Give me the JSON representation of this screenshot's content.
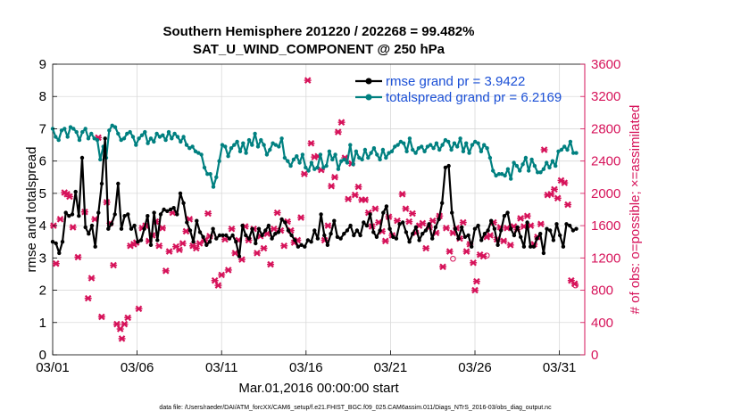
{
  "chart_data": {
    "type": "line",
    "title_line1": "Southern Hemisphere 201220 / 202268 = 99.482%",
    "title_line2": "SAT_U_WIND_COMPONENT @ 250 hPa",
    "xlabel": "Mar.01,2016 00:00:00 start",
    "ylabel_left": "rmse and totalspread",
    "ylabel_right": "# of obs: o=possible; ×=assimilated",
    "footnote": "data file: /Users/raeder/DAI/ATM_forcXX/CAM6_setup/f.e21.FHIST_BGC.f09_025.CAM6assim.011/Diags_NTrS_2016-03/obs_diag_output.nc",
    "xlim": [
      1,
      32.5
    ],
    "x_ticks": [
      1,
      6,
      11,
      16,
      21,
      26,
      31
    ],
    "x_tick_labels": [
      "03/01",
      "03/06",
      "03/11",
      "03/16",
      "03/21",
      "03/26",
      "03/31"
    ],
    "ylim_left": [
      0,
      9
    ],
    "y_ticks_left": [
      "0",
      "1",
      "2",
      "3",
      "4",
      "5",
      "6",
      "7",
      "8",
      "9"
    ],
    "ylim_right": [
      0,
      3600
    ],
    "y_ticks_right": [
      "0",
      "400",
      "800",
      "1200",
      "1600",
      "2000",
      "2400",
      "2800",
      "3200",
      "3600"
    ],
    "grid": true,
    "legend_position": "top-right",
    "colors": {
      "rmse": "#000000",
      "totalspread": "#008080",
      "obs": "#d6135a",
      "axis_left": "#000000",
      "axis_right": "#d6135a",
      "legend_text": "#1a4fd6",
      "grid": "#d9d9d9"
    },
    "series": [
      {
        "name": "rmse grand pr = 3.9422",
        "values": [
          3.5,
          3.45,
          3.15,
          3.5,
          4.4,
          4.3,
          4.35,
          5.05,
          4.3,
          6.1,
          3.95,
          3.75,
          4.0,
          3.35,
          4.4,
          5.3,
          6.7,
          3.9,
          4.05,
          4.35,
          5.3,
          3.9,
          4.3,
          4.35,
          3.9,
          4.0,
          3.5,
          3.55,
          3.9,
          4.3,
          3.4,
          4.4,
          3.55,
          4.35,
          4.5,
          4.45,
          4.5,
          4.55,
          4.35,
          5.0,
          4.7,
          4.1,
          3.85,
          3.5,
          4.15,
          3.8,
          3.65,
          3.4,
          3.5,
          3.9,
          3.6,
          3.7,
          3.7,
          3.7,
          3.6,
          3.7,
          3.5,
          3.05,
          4.0,
          3.7,
          3.6,
          3.9,
          3.45,
          3.9,
          3.7,
          3.85,
          4.0,
          3.6,
          3.75,
          3.8,
          4.2,
          4.1,
          3.85,
          3.7,
          3.55,
          3.35,
          3.4,
          3.35,
          3.55,
          3.5,
          3.85,
          3.6,
          4.35,
          3.7,
          3.4,
          3.75,
          4.15,
          3.65,
          3.6,
          3.75,
          3.85,
          4.0,
          3.7,
          3.85,
          3.7,
          4.1,
          4.0,
          4.35,
          3.8,
          3.65,
          3.85,
          4.4,
          4.6,
          3.9,
          3.65,
          3.6,
          4.05,
          4.1,
          3.8,
          3.5,
          3.75,
          3.95,
          3.55,
          3.75,
          3.85,
          4.05,
          3.6,
          3.95,
          4.2,
          4.7,
          5.8,
          5.85,
          4.4,
          3.9,
          3.6,
          3.95,
          3.65,
          3.7,
          3.35,
          3.9,
          4.0,
          3.55,
          3.75,
          3.85,
          4.15,
          3.9,
          3.4,
          3.85,
          4.3,
          4.4,
          3.9,
          3.7,
          3.95,
          3.65,
          3.35,
          4.1,
          3.35,
          3.35,
          3.6,
          3.75,
          3.15,
          3.9,
          3.85,
          3.55,
          4.05,
          3.7,
          3.35,
          4.05,
          4.0,
          3.85,
          3.9
        ]
      },
      {
        "name": "totalspread grand pr = 6.2169",
        "values": [
          7.0,
          6.75,
          6.65,
          6.95,
          7.0,
          6.75,
          7.05,
          7.0,
          6.9,
          6.65,
          6.9,
          7.0,
          6.7,
          6.85,
          6.7,
          6.65,
          6.05,
          6.45,
          6.1,
          6.95,
          7.1,
          7.05,
          6.85,
          6.65,
          6.7,
          6.85,
          6.9,
          6.75,
          6.5,
          6.7,
          6.8,
          6.9,
          6.55,
          6.7,
          6.6,
          6.85,
          6.75,
          6.8,
          6.65,
          6.9,
          6.7,
          6.85,
          6.75,
          6.6,
          6.75,
          6.5,
          6.4,
          6.45,
          6.3,
          6.25,
          6.2,
          5.8,
          5.6,
          5.6,
          5.2,
          5.5,
          6.0,
          6.5,
          6.45,
          6.15,
          6.4,
          6.5,
          6.6,
          6.3,
          6.55,
          6.25,
          6.65,
          6.5,
          6.85,
          6.45,
          6.65,
          6.5,
          6.2,
          6.35,
          6.55,
          6.5,
          6.45,
          6.7,
          6.1,
          6.0,
          5.85,
          6.05,
          6.15,
          5.95,
          6.2,
          5.8,
          5.7,
          5.95,
          5.75,
          5.8,
          6.2,
          5.8,
          5.85,
          6.3,
          6.05,
          6.2,
          5.75,
          6.0,
          6.05,
          5.95,
          6.5,
          5.9,
          6.3,
          6.1,
          6.05,
          6.35,
          6.1,
          6.25,
          6.4,
          6.2,
          6.05,
          6.35,
          6.1,
          6.25,
          6.3,
          6.45,
          6.5,
          6.6,
          6.55,
          6.3,
          6.7,
          6.35,
          6.25,
          6.4,
          6.45,
          6.3,
          6.45,
          6.5,
          6.4,
          6.55,
          6.35,
          6.5,
          6.65,
          6.6,
          6.35,
          6.55,
          6.45,
          6.7,
          6.3,
          6.55,
          6.25,
          6.5,
          6.6,
          6.55,
          6.3,
          6.5,
          6.4,
          6.1,
          5.7,
          5.55,
          5.6,
          5.6,
          5.55,
          5.75,
          5.45,
          5.95,
          5.85,
          5.7,
          5.9,
          6.1,
          5.7,
          6.05,
          5.85,
          5.65,
          5.65,
          5.75,
          5.95,
          5.8,
          6.0,
          5.85,
          6.3,
          6.35,
          6.45,
          6.35,
          6.6,
          6.25,
          6.25
        ]
      }
    ],
    "obs_points": [
      [
        1.05,
        1600
      ],
      [
        1.2,
        1130
      ],
      [
        1.45,
        1680
      ],
      [
        1.7,
        2010
      ],
      [
        1.85,
        1990
      ],
      [
        2.0,
        1960
      ],
      [
        2.2,
        1580
      ],
      [
        2.5,
        1210
      ],
      [
        2.9,
        1770
      ],
      [
        3.1,
        700
      ],
      [
        3.3,
        950
      ],
      [
        3.5,
        1680
      ],
      [
        3.7,
        2690
      ],
      [
        3.9,
        470
      ],
      [
        4.2,
        1890
      ],
      [
        4.4,
        1630
      ],
      [
        4.6,
        1110
      ],
      [
        4.8,
        380
      ],
      [
        5.0,
        320
      ],
      [
        5.1,
        200
      ],
      [
        5.25,
        380
      ],
      [
        5.45,
        460
      ],
      [
        5.6,
        1350
      ],
      [
        5.8,
        1370
      ],
      [
        5.95,
        1390
      ],
      [
        6.1,
        570
      ],
      [
        6.3,
        1570
      ],
      [
        6.5,
        1600
      ],
      [
        6.7,
        1410
      ],
      [
        6.9,
        1480
      ],
      [
        7.1,
        1650
      ],
      [
        7.3,
        1350
      ],
      [
        7.5,
        1570
      ],
      [
        7.7,
        1040
      ],
      [
        7.9,
        1280
      ],
      [
        8.1,
        1760
      ],
      [
        8.3,
        1340
      ],
      [
        8.5,
        1300
      ],
      [
        8.7,
        1380
      ],
      [
        8.9,
        1530
      ],
      [
        9.1,
        1680
      ],
      [
        9.3,
        1350
      ],
      [
        9.5,
        1320
      ],
      [
        9.7,
        1380
      ],
      [
        10.0,
        1420
      ],
      [
        10.2,
        1750
      ],
      [
        10.3,
        1470
      ],
      [
        10.6,
        920
      ],
      [
        10.8,
        860
      ],
      [
        11.0,
        990
      ],
      [
        11.2,
        1430
      ],
      [
        11.4,
        1050
      ],
      [
        11.6,
        1560
      ],
      [
        11.8,
        1260
      ],
      [
        12.0,
        1420
      ],
      [
        12.2,
        1180
      ],
      [
        12.4,
        1590
      ],
      [
        12.6,
        1420
      ],
      [
        12.9,
        1560
      ],
      [
        13.1,
        1260
      ],
      [
        13.3,
        1470
      ],
      [
        13.5,
        1320
      ],
      [
        13.7,
        1500
      ],
      [
        13.9,
        1120
      ],
      [
        14.1,
        1560
      ],
      [
        14.3,
        1760
      ],
      [
        14.5,
        1540
      ],
      [
        14.7,
        1350
      ],
      [
        14.9,
        1650
      ],
      [
        15.1,
        1540
      ],
      [
        15.3,
        1390
      ],
      [
        15.5,
        1420
      ],
      [
        15.7,
        1700
      ],
      [
        15.9,
        2240
      ],
      [
        16.1,
        3400
      ],
      [
        16.3,
        2620
      ],
      [
        16.5,
        2450
      ],
      [
        16.7,
        2460
      ],
      [
        16.9,
        2290
      ],
      [
        17.1,
        1420
      ],
      [
        17.3,
        1600
      ],
      [
        17.5,
        2090
      ],
      [
        17.7,
        2200
      ],
      [
        17.9,
        2760
      ],
      [
        18.1,
        2880
      ],
      [
        18.3,
        2440
      ],
      [
        18.5,
        1930
      ],
      [
        18.7,
        2370
      ],
      [
        18.9,
        1980
      ],
      [
        19.1,
        2080
      ],
      [
        19.3,
        1920
      ],
      [
        19.5,
        1920
      ],
      [
        19.7,
        1760
      ],
      [
        19.9,
        1590
      ],
      [
        20.1,
        1810
      ],
      [
        20.3,
        1640
      ],
      [
        20.5,
        1530
      ],
      [
        20.7,
        1410
      ],
      [
        20.9,
        1710
      ],
      [
        21.1,
        1480
      ],
      [
        21.4,
        1660
      ],
      [
        21.7,
        1990
      ],
      [
        21.9,
        1810
      ],
      [
        22.1,
        1650
      ],
      [
        22.3,
        1750
      ],
      [
        22.5,
        1510
      ],
      [
        22.7,
        1600
      ],
      [
        22.9,
        1630
      ],
      [
        23.1,
        1320
      ],
      [
        23.3,
        1580
      ],
      [
        23.5,
        1660
      ],
      [
        23.7,
        1510
      ],
      [
        23.9,
        1720
      ],
      [
        24.1,
        1090
      ],
      [
        24.3,
        1570
      ],
      [
        24.5,
        1280
      ],
      [
        24.7,
        1510
      ],
      [
        24.9,
        1570
      ],
      [
        25.1,
        1440
      ],
      [
        25.3,
        1640
      ],
      [
        25.5,
        1280
      ],
      [
        25.7,
        1370
      ],
      [
        25.9,
        1140
      ],
      [
        26.0,
        800
      ],
      [
        26.1,
        910
      ],
      [
        26.3,
        1240
      ],
      [
        26.5,
        1220
      ],
      [
        26.7,
        1460
      ],
      [
        26.9,
        1480
      ],
      [
        27.1,
        1640
      ],
      [
        27.3,
        1430
      ],
      [
        27.5,
        1580
      ],
      [
        27.7,
        1410
      ],
      [
        27.9,
        1570
      ],
      [
        28.1,
        1360
      ],
      [
        28.3,
        1590
      ],
      [
        28.5,
        1550
      ],
      [
        28.7,
        1690
      ],
      [
        28.9,
        1590
      ],
      [
        29.1,
        1720
      ],
      [
        29.3,
        1600
      ],
      [
        29.5,
        1370
      ],
      [
        29.7,
        1460
      ],
      [
        29.9,
        1620
      ],
      [
        30.1,
        2540
      ],
      [
        30.3,
        1980
      ],
      [
        30.5,
        1990
      ],
      [
        30.7,
        2050
      ],
      [
        30.9,
        1940
      ],
      [
        31.1,
        2160
      ],
      [
        31.3,
        2130
      ],
      [
        31.5,
        1860
      ],
      [
        31.7,
        920
      ],
      [
        31.9,
        880
      ]
    ],
    "obs_possible_points": [
      [
        24.7,
        1190
      ],
      [
        26.7,
        1230
      ],
      [
        31.95,
        860
      ]
    ]
  }
}
